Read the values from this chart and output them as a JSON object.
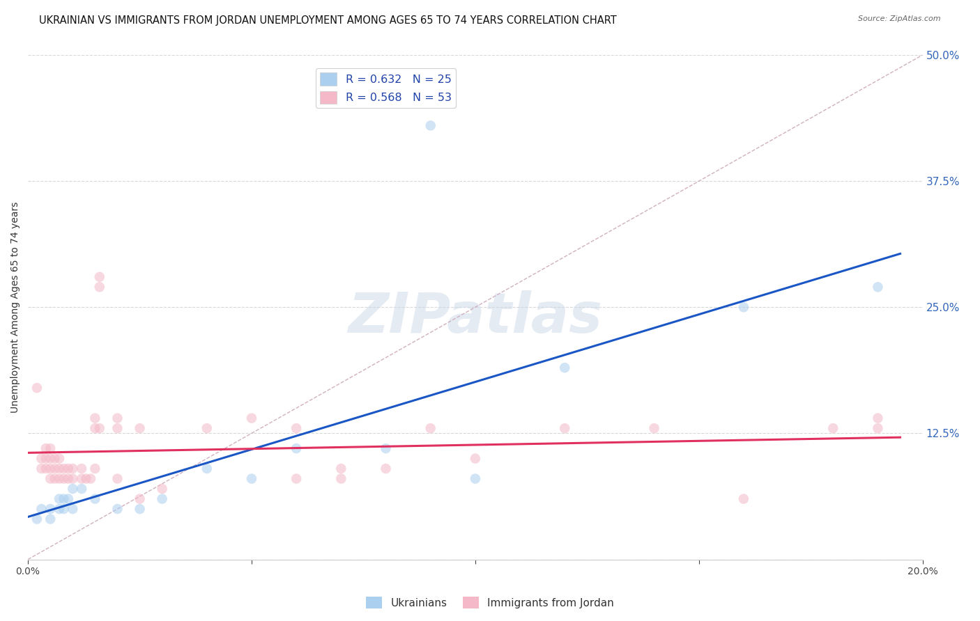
{
  "title": "UKRAINIAN VS IMMIGRANTS FROM JORDAN UNEMPLOYMENT AMONG AGES 65 TO 74 YEARS CORRELATION CHART",
  "source": "Source: ZipAtlas.com",
  "ylabel": "Unemployment Among Ages 65 to 74 years",
  "xlim": [
    0,
    0.2
  ],
  "ylim": [
    0,
    0.5
  ],
  "xticks": [
    0.0,
    0.05,
    0.1,
    0.15,
    0.2
  ],
  "yticks": [
    0.0,
    0.125,
    0.25,
    0.375,
    0.5
  ],
  "watermark": "ZIPatlas",
  "legend1_label": "R = 0.632   N = 25",
  "legend2_label": "R = 0.568   N = 53",
  "legend1_color": "#aacfef",
  "legend2_color": "#f4b8c8",
  "blue_scatter_color": "#aacfef",
  "pink_scatter_color": "#f4b8c8",
  "blue_scatter": [
    [
      0.002,
      0.04
    ],
    [
      0.003,
      0.05
    ],
    [
      0.005,
      0.04
    ],
    [
      0.005,
      0.05
    ],
    [
      0.007,
      0.05
    ],
    [
      0.007,
      0.06
    ],
    [
      0.008,
      0.05
    ],
    [
      0.008,
      0.06
    ],
    [
      0.009,
      0.06
    ],
    [
      0.01,
      0.05
    ],
    [
      0.01,
      0.07
    ],
    [
      0.012,
      0.07
    ],
    [
      0.015,
      0.06
    ],
    [
      0.02,
      0.05
    ],
    [
      0.025,
      0.05
    ],
    [
      0.03,
      0.06
    ],
    [
      0.04,
      0.09
    ],
    [
      0.05,
      0.08
    ],
    [
      0.06,
      0.11
    ],
    [
      0.08,
      0.11
    ],
    [
      0.09,
      0.43
    ],
    [
      0.1,
      0.08
    ],
    [
      0.12,
      0.19
    ],
    [
      0.16,
      0.25
    ],
    [
      0.19,
      0.27
    ]
  ],
  "pink_scatter": [
    [
      0.002,
      0.17
    ],
    [
      0.003,
      0.09
    ],
    [
      0.003,
      0.1
    ],
    [
      0.004,
      0.09
    ],
    [
      0.004,
      0.1
    ],
    [
      0.004,
      0.11
    ],
    [
      0.005,
      0.08
    ],
    [
      0.005,
      0.09
    ],
    [
      0.005,
      0.1
    ],
    [
      0.005,
      0.11
    ],
    [
      0.006,
      0.08
    ],
    [
      0.006,
      0.09
    ],
    [
      0.006,
      0.1
    ],
    [
      0.007,
      0.08
    ],
    [
      0.007,
      0.09
    ],
    [
      0.007,
      0.1
    ],
    [
      0.008,
      0.08
    ],
    [
      0.008,
      0.09
    ],
    [
      0.009,
      0.08
    ],
    [
      0.009,
      0.09
    ],
    [
      0.01,
      0.08
    ],
    [
      0.01,
      0.09
    ],
    [
      0.012,
      0.08
    ],
    [
      0.012,
      0.09
    ],
    [
      0.013,
      0.08
    ],
    [
      0.014,
      0.08
    ],
    [
      0.015,
      0.09
    ],
    [
      0.015,
      0.13
    ],
    [
      0.015,
      0.14
    ],
    [
      0.016,
      0.13
    ],
    [
      0.016,
      0.27
    ],
    [
      0.016,
      0.28
    ],
    [
      0.02,
      0.08
    ],
    [
      0.02,
      0.13
    ],
    [
      0.02,
      0.14
    ],
    [
      0.025,
      0.13
    ],
    [
      0.025,
      0.06
    ],
    [
      0.03,
      0.07
    ],
    [
      0.04,
      0.13
    ],
    [
      0.05,
      0.14
    ],
    [
      0.06,
      0.08
    ],
    [
      0.06,
      0.13
    ],
    [
      0.07,
      0.08
    ],
    [
      0.07,
      0.09
    ],
    [
      0.08,
      0.09
    ],
    [
      0.09,
      0.13
    ],
    [
      0.1,
      0.1
    ],
    [
      0.12,
      0.13
    ],
    [
      0.14,
      0.13
    ],
    [
      0.16,
      0.06
    ],
    [
      0.18,
      0.13
    ],
    [
      0.19,
      0.13
    ],
    [
      0.19,
      0.14
    ]
  ],
  "blue_line_color": "#1a56c4",
  "pink_line_color": "#e03060",
  "dashed_line_color": "#d0b0c0",
  "grid_color": "#d8d8d8",
  "background_color": "#ffffff",
  "title_fontsize": 10.5,
  "axis_fontsize": 10,
  "tick_fontsize": 10,
  "scatter_size": 110,
  "scatter_alpha": 0.55,
  "line_width": 2.2
}
